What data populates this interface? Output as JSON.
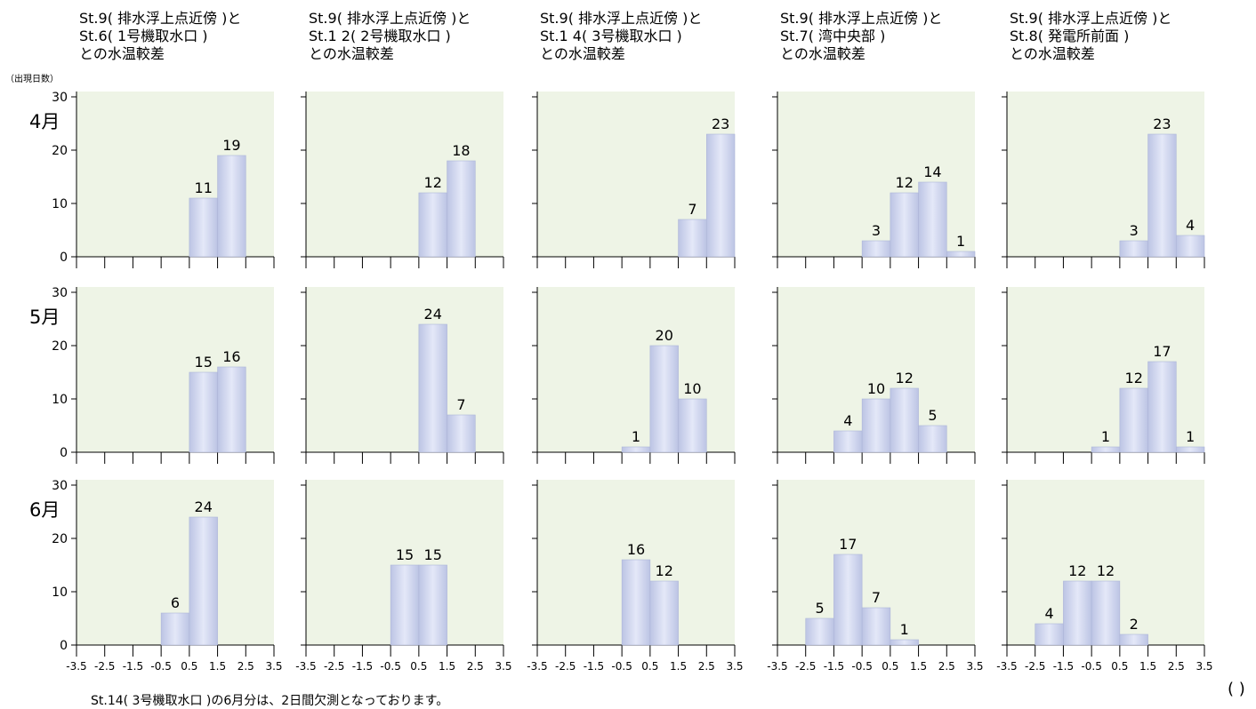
{
  "y_axis_unit": "（出現日数）",
  "footnote": "St.14( 3号機取水口 )の6月分は、2日間欠測となっております。",
  "page_mark": "(  )",
  "colors": {
    "plot_bg": "#eef4e6",
    "bar_edge": "#bcc4e4",
    "bar_mid": "#e4e8f8",
    "axis": "#000000"
  },
  "chart_data": {
    "type": "bar",
    "x_bins": [
      -3,
      -2,
      -1,
      0,
      1,
      2,
      3
    ],
    "x_tick_labels": [
      "-3.5",
      "-2.5",
      "-1.5",
      "-0.5",
      "0.5",
      "1.5",
      "2.5",
      "3.5"
    ],
    "y_ticks": [
      0,
      10,
      20,
      30
    ],
    "ylim": [
      0,
      31
    ],
    "columns": [
      {
        "title": [
          "St.9( 排水浮上点近傍 )と",
          "St.6( 1号機取水口 )",
          "との水温較差"
        ]
      },
      {
        "title": [
          "St.9( 排水浮上点近傍 )と",
          "St.1 2( 2号機取水口 )",
          "との水温較差"
        ]
      },
      {
        "title": [
          "St.9( 排水浮上点近傍 )と",
          "St.1 4( 3号機取水口 )",
          "との水温較差"
        ]
      },
      {
        "title": [
          "St.9( 排水浮上点近傍 )と",
          "St.7( 湾中央部 )",
          "との水温較差"
        ]
      },
      {
        "title": [
          "St.9( 排水浮上点近傍 )と",
          "St.8( 発電所前面 )",
          "との水温較差"
        ]
      }
    ],
    "rows": [
      {
        "month": "4月",
        "panels": [
          [
            0,
            0,
            0,
            0,
            11,
            19,
            0
          ],
          [
            0,
            0,
            0,
            0,
            12,
            18,
            0
          ],
          [
            0,
            0,
            0,
            0,
            0,
            7,
            23
          ],
          [
            0,
            0,
            0,
            3,
            12,
            14,
            1
          ],
          [
            0,
            0,
            0,
            0,
            3,
            23,
            4
          ]
        ]
      },
      {
        "month": "5月",
        "panels": [
          [
            0,
            0,
            0,
            0,
            15,
            16,
            0
          ],
          [
            0,
            0,
            0,
            0,
            24,
            7,
            0
          ],
          [
            0,
            0,
            0,
            1,
            20,
            10,
            0
          ],
          [
            0,
            0,
            4,
            10,
            12,
            5,
            0
          ],
          [
            0,
            0,
            0,
            1,
            12,
            17,
            1
          ]
        ]
      },
      {
        "month": "6月",
        "panels": [
          [
            0,
            0,
            0,
            6,
            24,
            0,
            0
          ],
          [
            0,
            0,
            0,
            15,
            15,
            0,
            0
          ],
          [
            0,
            0,
            0,
            16,
            12,
            0,
            0
          ],
          [
            0,
            5,
            17,
            7,
            1,
            0,
            0
          ],
          [
            0,
            4,
            12,
            12,
            2,
            0,
            0
          ]
        ]
      }
    ]
  }
}
